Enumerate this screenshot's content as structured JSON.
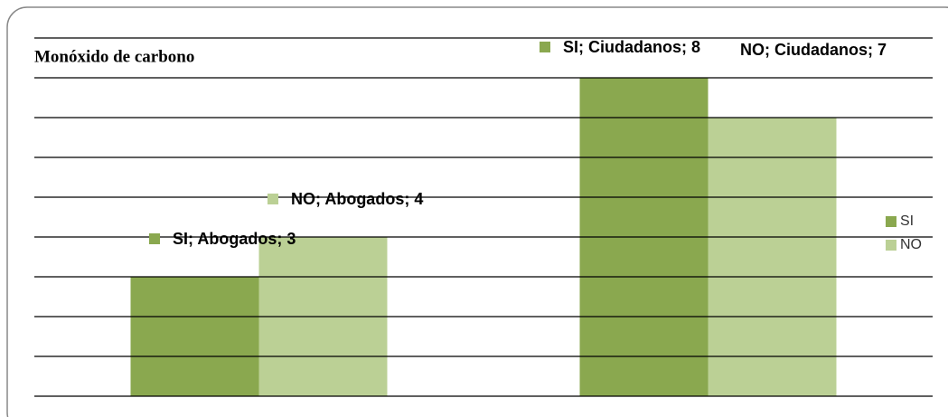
{
  "chart_data": {
    "type": "bar",
    "title": "Monóxido de carbono",
    "series": [
      {
        "name": "SI",
        "color": "#8aa84f",
        "values": [
          3,
          8
        ],
        "value_labels": [
          "SI; Abogados; 3",
          "SI; Ciudadanos; 8"
        ]
      },
      {
        "name": "NO",
        "color": "#bbd095",
        "values": [
          4,
          7
        ],
        "value_labels": [
          "NO; Abogados; 4",
          "NO; Ciudadanos; 7"
        ]
      }
    ],
    "ylim": [
      0,
      9
    ],
    "yticks": [
      0,
      1,
      2,
      3,
      4,
      5,
      6,
      7,
      8,
      9
    ],
    "grid": true,
    "legend": "right"
  }
}
